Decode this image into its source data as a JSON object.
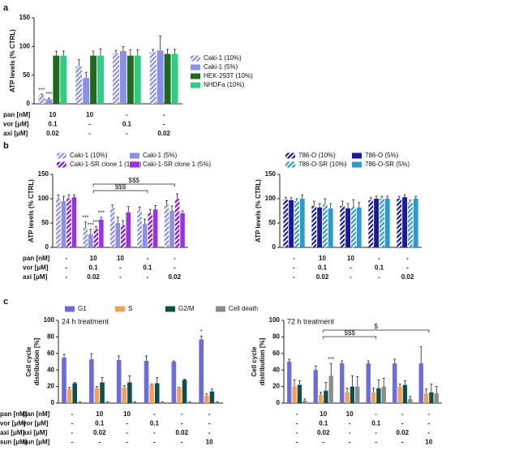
{
  "chart_data": [
    {
      "type": "bar",
      "panel": "a",
      "ylabel": [
        "ATP levels (% CTRL)"
      ],
      "ylim": [
        0,
        150
      ],
      "yticks": [
        0,
        50,
        100,
        150
      ],
      "legend": "right",
      "series": [
        {
          "name": "Caki-1 (10%)",
          "color": "#8a8fe8",
          "pattern": "striped",
          "values": [
            15,
            65,
            88,
            90
          ],
          "errors": [
            2,
            12,
            5,
            5
          ],
          "signif": [
            "***",
            null,
            null,
            null
          ]
        },
        {
          "name": "Caki-1 (5%)",
          "color": "#8a8fe8",
          "values": [
            8,
            45,
            92,
            93
          ],
          "errors": [
            2,
            10,
            8,
            25
          ],
          "signif": [
            "***",
            null,
            null,
            null
          ]
        },
        {
          "name": "HEK-293T (10%)",
          "color": "#1e6b1e",
          "values": [
            84,
            84,
            84,
            87
          ],
          "errors": [
            8,
            8,
            10,
            8
          ]
        },
        {
          "name": "NHDFa (10%)",
          "color": "#2fcc85",
          "values": [
            84,
            84,
            84,
            87
          ],
          "errors": [
            8,
            12,
            10,
            8
          ]
        }
      ],
      "treatments": [
        {
          "label": "pan [nM]",
          "values": [
            "10",
            "10",
            "-",
            "-"
          ]
        },
        {
          "label": "vor [μM]",
          "values": [
            "0.1",
            "-",
            "0.1",
            "-"
          ]
        },
        {
          "label": "axi [μM]",
          "values": [
            "0.02",
            "-",
            "-",
            "0.02"
          ]
        }
      ]
    },
    {
      "type": "bar",
      "panel": "b",
      "ylabel": [
        "ATP levels (% CTRL)"
      ],
      "ylim": [
        0,
        150
      ],
      "yticks": [
        0,
        50,
        100,
        150
      ],
      "legend": "top",
      "series": [
        {
          "name": "Caki-1 (10%)",
          "color": "#8a8fe8",
          "pattern": "striped",
          "values": [
            100,
            40,
            82,
            75,
            88
          ],
          "errors": [
            8,
            12,
            5,
            8,
            8
          ],
          "signif": [
            null,
            "***",
            null,
            null,
            null
          ]
        },
        {
          "name": "Caki-1 (5%)",
          "color": "#8a8fe8",
          "values": [
            95,
            27,
            50,
            48,
            75
          ],
          "errors": [
            10,
            10,
            12,
            10,
            10
          ],
          "signif": [
            null,
            "***",
            null,
            null,
            null
          ]
        },
        {
          "name": "Caki-1-SR clone 1 (10%)",
          "color": "#8a10d0",
          "pattern": "striped",
          "values": [
            100,
            38,
            45,
            70,
            100
          ],
          "errors": [
            8,
            5,
            10,
            8,
            10
          ],
          "signif": [
            null,
            "***",
            null,
            null,
            null
          ]
        },
        {
          "name": "Caki-1-SR clone 1 (5%)",
          "color": "#9a30e0",
          "values": [
            103,
            57,
            72,
            78,
            70
          ],
          "errors": [
            5,
            5,
            12,
            8,
            5
          ],
          "signif": [
            null,
            "***",
            null,
            null,
            null
          ]
        }
      ],
      "brackets": [
        {
          "text": "$$$",
          "from": 1,
          "to": 3
        },
        {
          "text": "$$$",
          "from": 1,
          "to": 4
        }
      ],
      "treatments": [
        {
          "label": "pan [nM]",
          "values": [
            "-",
            "10",
            "10",
            "-",
            "-"
          ]
        },
        {
          "label": "vor [μM]",
          "values": [
            "-",
            "0.1",
            "-",
            "0.1",
            "-"
          ]
        },
        {
          "label": "axi [μM]",
          "values": [
            "-",
            "0.02",
            "-",
            "-",
            "0.02"
          ]
        }
      ]
    },
    {
      "type": "bar",
      "ylabel": [
        "ATP levels (% CTRL)"
      ],
      "ylim": [
        0,
        150
      ],
      "yticks": [
        0,
        50,
        100,
        150
      ],
      "legend": "top",
      "series": [
        {
          "name": "786-O (10%)",
          "color": "#1a1aa0",
          "pattern": "striped",
          "values": [
            98,
            85,
            85,
            97,
            100
          ],
          "errors": [
            5,
            10,
            10,
            5,
            5
          ]
        },
        {
          "name": "786-O (5%)",
          "color": "#1a1aa0",
          "values": [
            97,
            82,
            80,
            100,
            103
          ],
          "errors": [
            5,
            8,
            10,
            5,
            5
          ]
        },
        {
          "name": "786-O-SR (10%)",
          "color": "#2a9ad0",
          "pattern": "striped",
          "values": [
            95,
            88,
            83,
            100,
            92
          ],
          "errors": [
            5,
            12,
            15,
            5,
            5
          ]
        },
        {
          "name": "786-O-SR (5%)",
          "color": "#2a9ad0",
          "values": [
            100,
            80,
            82,
            100,
            100
          ],
          "errors": [
            8,
            10,
            10,
            5,
            5
          ]
        }
      ],
      "treatments": [
        {
          "values": [
            "-",
            "10",
            "10",
            "-",
            "-"
          ]
        },
        {
          "values": [
            "-",
            "0.1",
            "-",
            "0.1",
            "-"
          ]
        },
        {
          "values": [
            "-",
            "0.02",
            "-",
            "-",
            "0.02"
          ]
        }
      ]
    },
    {
      "type": "bar",
      "panel": "c",
      "title": "24 h treatment",
      "ylabel": [
        "Cell cycle",
        "distribution [%]"
      ],
      "ylim": [
        0,
        100
      ],
      "yticks": [
        0,
        20,
        40,
        60,
        80,
        100
      ],
      "legend": "top",
      "series": [
        {
          "name": "G1",
          "color": "#6b6be0",
          "values": [
            55,
            53,
            52,
            51,
            50,
            77
          ],
          "errors": [
            4,
            7,
            5,
            6,
            1,
            4
          ],
          "signif": [
            null,
            null,
            null,
            null,
            null,
            "*"
          ]
        },
        {
          "name": "S",
          "color": "#f5a050",
          "values": [
            17,
            18,
            19,
            22,
            18,
            9
          ],
          "errors": [
            2,
            2,
            2,
            1,
            1,
            2
          ]
        },
        {
          "name": "G2/M",
          "color": "#0d4f4f",
          "values": [
            24,
            25,
            25,
            24,
            28,
            14
          ],
          "errors": [
            1,
            6,
            8,
            7,
            1,
            3
          ]
        },
        {
          "name": "Cell death",
          "color": "#8c8c8c",
          "values": [
            1,
            1,
            1,
            1,
            1,
            1
          ],
          "errors": [
            0.5,
            0.5,
            0.5,
            0.5,
            0.5,
            0.5
          ]
        }
      ],
      "treatments": [
        {
          "label": "pan [nM]",
          "values": [
            "-",
            "10",
            "10",
            "-",
            "-",
            "-"
          ]
        },
        {
          "label": "vor [μM]",
          "values": [
            "-",
            "0.1",
            "-",
            "0.1",
            "-",
            "-"
          ]
        },
        {
          "label": "axi [μM]",
          "values": [
            "-",
            "0.02",
            "-",
            "-",
            "0.02",
            "-"
          ]
        },
        {
          "label": "sun [μM]",
          "values": [
            "-",
            "-",
            "-",
            "-",
            "-",
            "10"
          ]
        }
      ]
    },
    {
      "type": "bar",
      "title": "72 h treatment",
      "ylabel": [
        "Cell cycle",
        "distribution [%]"
      ],
      "ylim": [
        0,
        100
      ],
      "yticks": [
        0,
        20,
        40,
        60,
        80,
        100
      ],
      "series": [
        {
          "color": "#6b6be0",
          "values": [
            50,
            40,
            48,
            48,
            48,
            48
          ],
          "errors": [
            3,
            5,
            3,
            3,
            5,
            20
          ]
        },
        {
          "color": "#f5a050",
          "values": [
            20,
            10,
            13,
            13,
            20,
            12
          ],
          "errors": [
            8,
            3,
            5,
            5,
            3,
            5
          ]
        },
        {
          "color": "#0d4f4f",
          "values": [
            22,
            15,
            20,
            18,
            22,
            13
          ],
          "errors": [
            5,
            10,
            13,
            10,
            5,
            10
          ]
        },
        {
          "color": "#8c8c8c",
          "values": [
            3,
            33,
            20,
            20,
            5,
            12
          ],
          "errors": [
            2,
            15,
            12,
            10,
            3,
            8
          ],
          "signif": [
            null,
            "***",
            null,
            null,
            null,
            null
          ]
        }
      ],
      "brackets": [
        {
          "text": "$$$",
          "from": 1,
          "to": 3
        },
        {
          "text": "$",
          "from": 1,
          "to": 5
        }
      ],
      "treatments": [
        {
          "label": "pan [nM]",
          "values": [
            "-",
            "10",
            "10",
            "-",
            "-",
            "-"
          ]
        },
        {
          "label": "vor [μM]",
          "values": [
            "-",
            "0.1",
            "-",
            "0.1",
            "-",
            "-"
          ]
        },
        {
          "label": "axi [μM]",
          "values": [
            "-",
            "0.02",
            "-",
            "-",
            "0.02",
            "-"
          ]
        },
        {
          "label": "sun [μM]",
          "values": [
            "-",
            "-",
            "-",
            "-",
            "-",
            "10"
          ]
        }
      ]
    }
  ]
}
